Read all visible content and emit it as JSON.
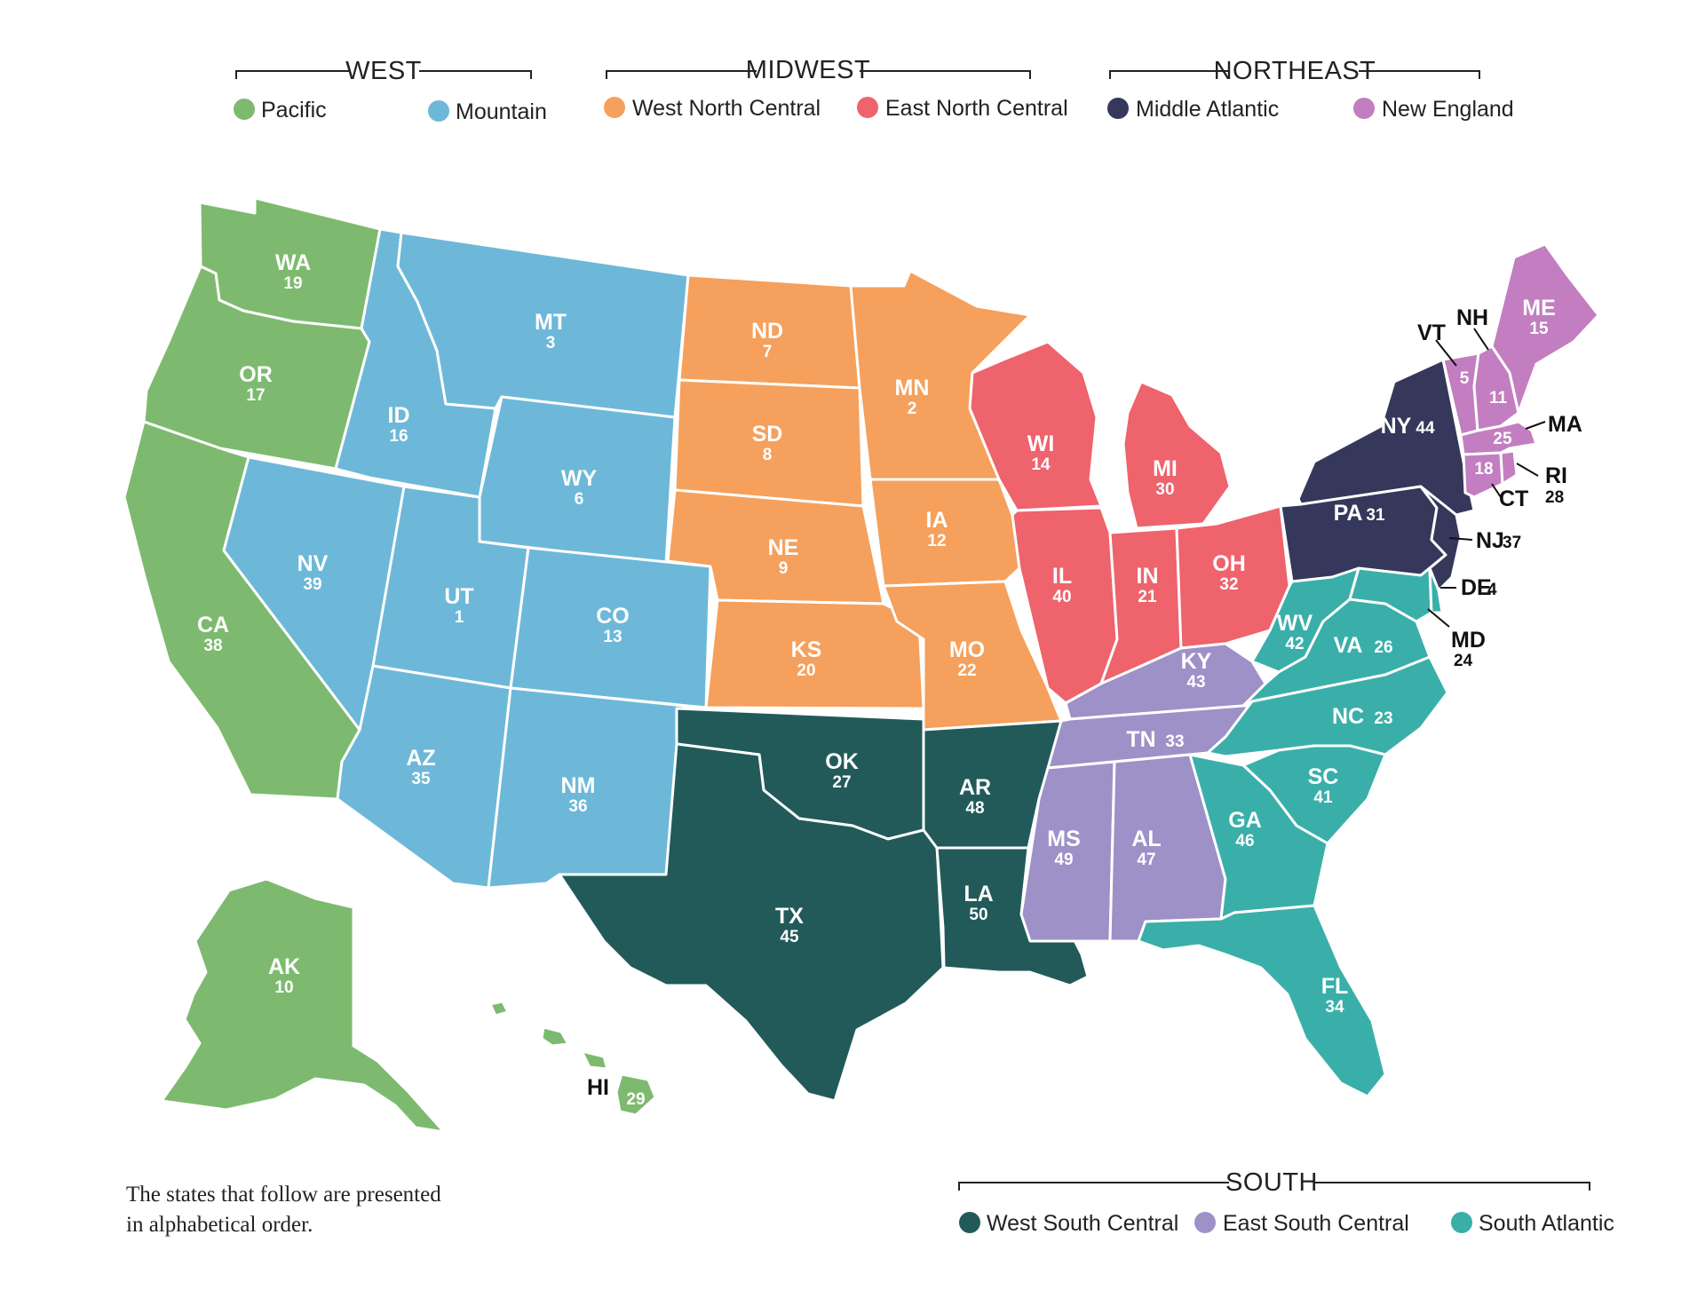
{
  "colors": {
    "pacific": "#7dba6f",
    "mountain": "#6db8d8",
    "west_north_central": "#f5a05c",
    "east_north_central": "#ee636c",
    "middle_atlantic": "#35385a",
    "new_england": "#c27ec0",
    "west_south_central": "#225a5a",
    "east_south_central": "#9d91c8",
    "south_atlantic": "#3aafaa"
  },
  "legend": {
    "west": {
      "title": "WEST",
      "items": [
        {
          "label": "Pacific",
          "color_key": "pacific"
        },
        {
          "label": "Mountain",
          "color_key": "mountain"
        }
      ]
    },
    "midwest": {
      "title": "MIDWEST",
      "items": [
        {
          "label": "West North Central",
          "color_key": "west_north_central"
        },
        {
          "label": "East North Central",
          "color_key": "east_north_central"
        }
      ]
    },
    "northeast": {
      "title": "NORTHEAST",
      "items": [
        {
          "label": "Middle Atlantic",
          "color_key": "middle_atlantic"
        },
        {
          "label": "New England",
          "color_key": "new_england"
        }
      ]
    },
    "south": {
      "title": "SOUTH",
      "items": [
        {
          "label": "West South Central",
          "color_key": "west_south_central"
        },
        {
          "label": "East South Central",
          "color_key": "east_south_central"
        },
        {
          "label": "South Atlantic",
          "color_key": "south_atlantic"
        }
      ]
    }
  },
  "states": [
    {
      "abbr": "WA",
      "rank": "19",
      "division": "pacific"
    },
    {
      "abbr": "OR",
      "rank": "17",
      "division": "pacific"
    },
    {
      "abbr": "CA",
      "rank": "38",
      "division": "pacific"
    },
    {
      "abbr": "AK",
      "rank": "10",
      "division": "pacific"
    },
    {
      "abbr": "HI",
      "rank": "29",
      "division": "pacific"
    },
    {
      "abbr": "ID",
      "rank": "16",
      "division": "mountain"
    },
    {
      "abbr": "MT",
      "rank": "3",
      "division": "mountain"
    },
    {
      "abbr": "WY",
      "rank": "6",
      "division": "mountain"
    },
    {
      "abbr": "NV",
      "rank": "39",
      "division": "mountain"
    },
    {
      "abbr": "UT",
      "rank": "1",
      "division": "mountain"
    },
    {
      "abbr": "CO",
      "rank": "13",
      "division": "mountain"
    },
    {
      "abbr": "AZ",
      "rank": "35",
      "division": "mountain"
    },
    {
      "abbr": "NM",
      "rank": "36",
      "division": "mountain"
    },
    {
      "abbr": "ND",
      "rank": "7",
      "division": "west_north_central"
    },
    {
      "abbr": "SD",
      "rank": "8",
      "division": "west_north_central"
    },
    {
      "abbr": "NE",
      "rank": "9",
      "division": "west_north_central"
    },
    {
      "abbr": "KS",
      "rank": "20",
      "division": "west_north_central"
    },
    {
      "abbr": "MN",
      "rank": "2",
      "division": "west_north_central"
    },
    {
      "abbr": "IA",
      "rank": "12",
      "division": "west_north_central"
    },
    {
      "abbr": "MO",
      "rank": "22",
      "division": "west_north_central"
    },
    {
      "abbr": "WI",
      "rank": "14",
      "division": "east_north_central"
    },
    {
      "abbr": "MI",
      "rank": "30",
      "division": "east_north_central"
    },
    {
      "abbr": "IL",
      "rank": "40",
      "division": "east_north_central"
    },
    {
      "abbr": "IN",
      "rank": "21",
      "division": "east_north_central"
    },
    {
      "abbr": "OH",
      "rank": "32",
      "division": "east_north_central"
    },
    {
      "abbr": "OK",
      "rank": "27",
      "division": "west_south_central"
    },
    {
      "abbr": "TX",
      "rank": "45",
      "division": "west_south_central"
    },
    {
      "abbr": "AR",
      "rank": "48",
      "division": "west_south_central"
    },
    {
      "abbr": "LA",
      "rank": "50",
      "division": "west_south_central"
    },
    {
      "abbr": "KY",
      "rank": "43",
      "division": "east_south_central"
    },
    {
      "abbr": "TN",
      "rank": "33",
      "division": "east_south_central"
    },
    {
      "abbr": "MS",
      "rank": "49",
      "division": "east_south_central"
    },
    {
      "abbr": "AL",
      "rank": "47",
      "division": "east_south_central"
    },
    {
      "abbr": "WV",
      "rank": "42",
      "division": "south_atlantic"
    },
    {
      "abbr": "VA",
      "rank": "26",
      "division": "south_atlantic"
    },
    {
      "abbr": "NC",
      "rank": "23",
      "division": "south_atlantic"
    },
    {
      "abbr": "SC",
      "rank": "41",
      "division": "south_atlantic"
    },
    {
      "abbr": "GA",
      "rank": "46",
      "division": "south_atlantic"
    },
    {
      "abbr": "FL",
      "rank": "34",
      "division": "south_atlantic"
    },
    {
      "abbr": "MD",
      "rank": "24",
      "division": "south_atlantic"
    },
    {
      "abbr": "DE",
      "rank": "4",
      "division": "south_atlantic"
    },
    {
      "abbr": "NY",
      "rank": "44",
      "division": "middle_atlantic"
    },
    {
      "abbr": "PA",
      "rank": "31",
      "division": "middle_atlantic"
    },
    {
      "abbr": "NJ",
      "rank": "37",
      "division": "middle_atlantic"
    },
    {
      "abbr": "VT",
      "rank": "5",
      "division": "new_england"
    },
    {
      "abbr": "NH",
      "rank": "11",
      "division": "new_england"
    },
    {
      "abbr": "ME",
      "rank": "15",
      "division": "new_england"
    },
    {
      "abbr": "MA",
      "rank": "25",
      "division": "new_england"
    },
    {
      "abbr": "CT",
      "rank": "18",
      "division": "new_england"
    },
    {
      "abbr": "RI",
      "rank": "28",
      "division": "new_england"
    }
  ],
  "note": {
    "line1": "The states that follow are presented",
    "line2": "in alphabetical order."
  }
}
